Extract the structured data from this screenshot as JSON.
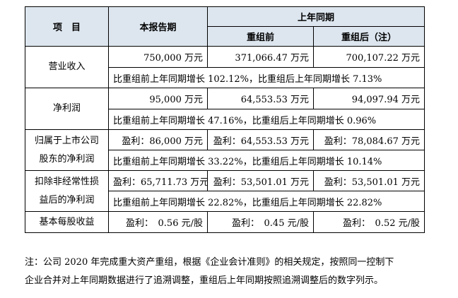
{
  "table": {
    "header": {
      "item": "项　目",
      "current": "本报告期",
      "prior": "上年同期",
      "before": "重组前",
      "after": "重组后（注）"
    },
    "rows": [
      {
        "label": "营业收入",
        "current": "750,000 万元",
        "before": "371,066.47 万元",
        "after": "700,107.22 万元",
        "growth": "比重组前上年同期增长 102.12%，比重组后上年同期增长 7.13%"
      },
      {
        "label": "净利润",
        "current": "95,000 万元",
        "before": "64,553.53 万元",
        "after": "94,097.94 万元",
        "growth": "比重组前上年同期增长 47.16%，比重组后上年同期增长 0.96%"
      },
      {
        "label_line1": "归属于上市公司",
        "label_line2": "股东的净利润",
        "current": "盈利：86,000 万元",
        "before": "盈利：64,553.53 万元",
        "after": "盈利：78,084.67 万元",
        "growth": "比重组前上年同期增长 33.22%，比重组后上年同期增长 10.14%"
      },
      {
        "label_line1": "扣除非经常性损",
        "label_line2": "益后的净利润",
        "current": "盈利：65,711.73 万元",
        "before": "盈利：53,501.01 万元",
        "after": "盈利：53,501.01 万元",
        "growth": "比重组前上年同期增长 22.82%，比重组后上年同期增长 22.82%"
      },
      {
        "label": "基本每股收益",
        "current": "盈利：　0.56 元/股",
        "before": "盈利：　0.45 元/股",
        "after": "盈利：　0.52 元/股"
      }
    ]
  },
  "note": {
    "line1": "注：公司 2020 年完成重大资产重组，根据《企业会计准则》的相关规定，按照同一控制下",
    "line2": "企业合并对上年同期数据进行了追溯调整，重组后上年同期按照追溯调整后的数字列示。"
  }
}
